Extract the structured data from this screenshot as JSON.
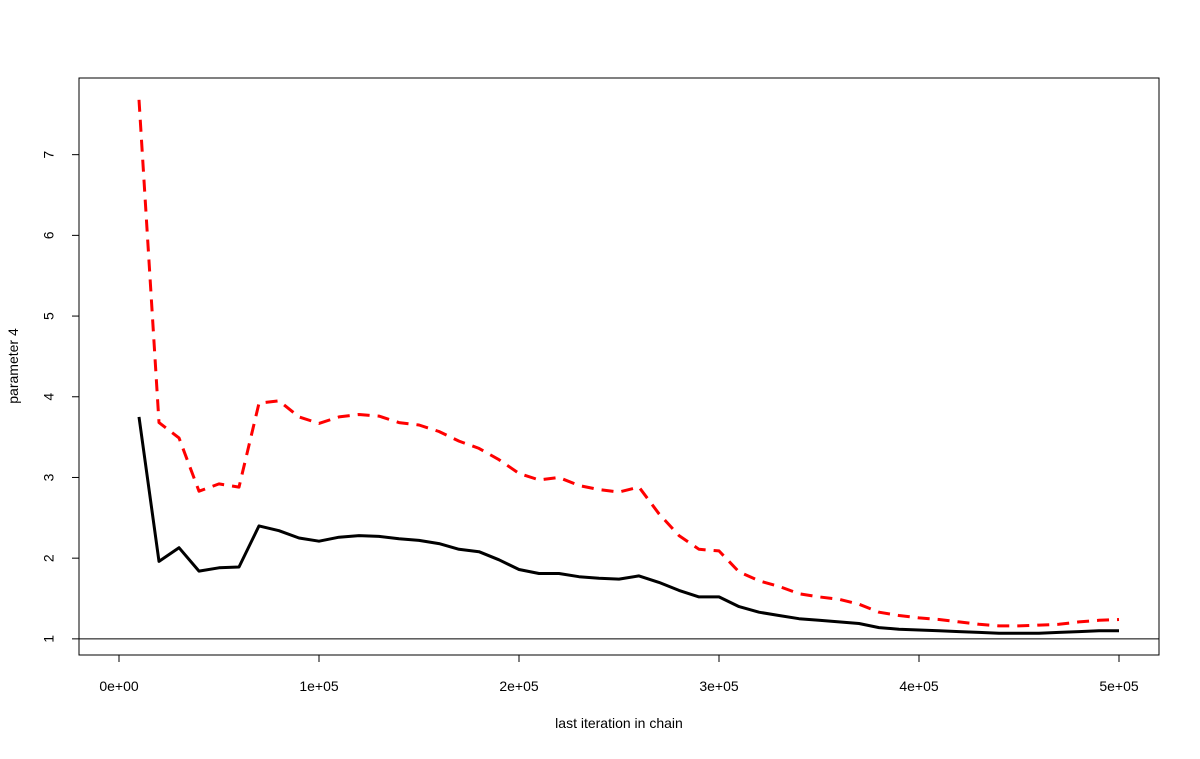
{
  "chart_data": {
    "type": "line",
    "title": "",
    "xlabel": "last iteration in chain",
    "ylabel": "parameter 4",
    "xlim": [
      -20000,
      520000
    ],
    "ylim": [
      0.8,
      7.95
    ],
    "x_ticks": [
      {
        "value": 0,
        "label": "0e+00"
      },
      {
        "value": 100000,
        "label": "1e+05"
      },
      {
        "value": 200000,
        "label": "2e+05"
      },
      {
        "value": 300000,
        "label": "3e+05"
      },
      {
        "value": 400000,
        "label": "4e+05"
      },
      {
        "value": 500000,
        "label": "5e+05"
      }
    ],
    "y_ticks": [
      {
        "value": 1,
        "label": "1"
      },
      {
        "value": 2,
        "label": "2"
      },
      {
        "value": 3,
        "label": "3"
      },
      {
        "value": 4,
        "label": "4"
      },
      {
        "value": 5,
        "label": "5"
      },
      {
        "value": 6,
        "label": "6"
      },
      {
        "value": 7,
        "label": "7"
      }
    ],
    "reference_line": {
      "y": 1,
      "color": "#000000"
    },
    "grid": false,
    "legend": false,
    "x": [
      10000,
      20000,
      30000,
      40000,
      50000,
      60000,
      70000,
      80000,
      90000,
      100000,
      110000,
      120000,
      130000,
      140000,
      150000,
      160000,
      170000,
      180000,
      190000,
      200000,
      210000,
      220000,
      230000,
      240000,
      250000,
      260000,
      270000,
      280000,
      290000,
      300000,
      310000,
      320000,
      330000,
      340000,
      350000,
      360000,
      370000,
      380000,
      390000,
      400000,
      410000,
      420000,
      430000,
      440000,
      450000,
      460000,
      470000,
      480000,
      490000,
      500000
    ],
    "series": [
      {
        "color": "#000000",
        "style": "solid",
        "values": [
          3.75,
          1.96,
          2.13,
          1.84,
          1.88,
          1.89,
          2.4,
          2.34,
          2.25,
          2.21,
          2.26,
          2.28,
          2.27,
          2.24,
          2.22,
          2.18,
          2.11,
          2.08,
          1.98,
          1.86,
          1.81,
          1.81,
          1.77,
          1.75,
          1.74,
          1.78,
          1.7,
          1.6,
          1.52,
          1.52,
          1.4,
          1.33,
          1.29,
          1.25,
          1.23,
          1.21,
          1.19,
          1.14,
          1.12,
          1.11,
          1.1,
          1.09,
          1.08,
          1.07,
          1.07,
          1.07,
          1.08,
          1.09,
          1.1,
          1.1
        ]
      },
      {
        "color": "#ff0000",
        "style": "dashed",
        "values": [
          7.68,
          3.68,
          3.49,
          2.83,
          2.92,
          2.88,
          3.92,
          3.95,
          3.75,
          3.67,
          3.75,
          3.78,
          3.76,
          3.68,
          3.65,
          3.57,
          3.45,
          3.36,
          3.22,
          3.05,
          2.97,
          3.0,
          2.9,
          2.85,
          2.82,
          2.88,
          2.55,
          2.28,
          2.11,
          2.09,
          1.83,
          1.72,
          1.65,
          1.56,
          1.52,
          1.49,
          1.43,
          1.33,
          1.29,
          1.26,
          1.24,
          1.21,
          1.18,
          1.16,
          1.16,
          1.17,
          1.18,
          1.21,
          1.23,
          1.24
        ]
      }
    ]
  }
}
